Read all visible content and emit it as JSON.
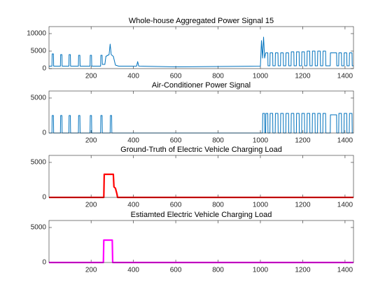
{
  "chart_data": [
    {
      "type": "line",
      "title": "Whole-house Aggregated Power Signal 15",
      "color": "#0072bd",
      "xlim": [
        1,
        1440
      ],
      "ylim": [
        0,
        12000
      ],
      "xticks": [
        200,
        400,
        600,
        800,
        1000,
        1200,
        1400
      ],
      "yticks": [
        0,
        5000,
        10000
      ],
      "x": [
        1,
        15,
        16,
        22,
        23,
        55,
        56,
        62,
        63,
        95,
        96,
        102,
        103,
        140,
        141,
        147,
        148,
        195,
        196,
        202,
        203,
        245,
        246,
        252,
        253,
        265,
        270,
        285,
        290,
        295,
        305,
        315,
        330,
        415,
        420,
        425,
        600,
        800,
        1000,
        1005,
        1010,
        1015,
        1020,
        1025,
        1035,
        1036,
        1045,
        1046,
        1058,
        1059,
        1070,
        1071,
        1083,
        1084,
        1095,
        1096,
        1108,
        1109,
        1120,
        1121,
        1133,
        1134,
        1145,
        1146,
        1158,
        1159,
        1170,
        1171,
        1183,
        1184,
        1195,
        1196,
        1208,
        1209,
        1220,
        1221,
        1233,
        1234,
        1245,
        1246,
        1258,
        1259,
        1270,
        1271,
        1283,
        1284,
        1295,
        1296,
        1308,
        1309,
        1330,
        1331,
        1360,
        1361,
        1370,
        1371,
        1383,
        1384,
        1395,
        1396,
        1408,
        1409,
        1420,
        1421,
        1433,
        1434,
        1440
      ],
      "values": [
        700,
        700,
        4200,
        4200,
        700,
        700,
        4000,
        4000,
        700,
        700,
        4000,
        4000,
        700,
        700,
        3800,
        3800,
        700,
        700,
        3800,
        3800,
        700,
        700,
        3800,
        3800,
        1200,
        1200,
        3500,
        4000,
        7000,
        4000,
        3500,
        1000,
        700,
        700,
        2000,
        700,
        500,
        600,
        700,
        8000,
        3000,
        9000,
        3000,
        4500,
        4500,
        800,
        800,
        4500,
        4500,
        800,
        800,
        4500,
        4500,
        800,
        800,
        4500,
        4500,
        800,
        800,
        4500,
        4500,
        800,
        800,
        4800,
        4800,
        800,
        800,
        4800,
        4800,
        800,
        800,
        4800,
        4800,
        800,
        800,
        5000,
        5000,
        800,
        800,
        5000,
        5000,
        800,
        800,
        5000,
        5000,
        800,
        800,
        5000,
        5000,
        800,
        800,
        4500,
        4500,
        800,
        800,
        4500,
        4500,
        800,
        800,
        4500,
        4500,
        800,
        800,
        4500,
        4500,
        800,
        800
      ]
    },
    {
      "type": "line",
      "title": "Air-Conditioner Power Signal",
      "color": "#0072bd",
      "xlim": [
        1,
        1440
      ],
      "ylim": [
        0,
        6000
      ],
      "xticks": [
        200,
        400,
        600,
        800,
        1000,
        1200,
        1400
      ],
      "yticks": [
        0,
        5000
      ],
      "x": [
        1,
        15,
        16,
        22,
        23,
        55,
        56,
        62,
        63,
        95,
        96,
        102,
        103,
        140,
        141,
        147,
        148,
        195,
        196,
        202,
        203,
        245,
        246,
        252,
        253,
        290,
        291,
        297,
        298,
        1010,
        1011,
        1020,
        1021,
        1025,
        1026,
        1035,
        1036,
        1045,
        1046,
        1058,
        1059,
        1070,
        1071,
        1083,
        1084,
        1095,
        1096,
        1108,
        1109,
        1120,
        1121,
        1133,
        1134,
        1145,
        1146,
        1158,
        1159,
        1170,
        1171,
        1183,
        1184,
        1195,
        1196,
        1208,
        1209,
        1220,
        1221,
        1233,
        1234,
        1245,
        1246,
        1258,
        1259,
        1270,
        1271,
        1283,
        1284,
        1295,
        1296,
        1308,
        1309,
        1330,
        1331,
        1360,
        1361,
        1370,
        1371,
        1383,
        1384,
        1395,
        1396,
        1408,
        1409,
        1420,
        1421,
        1433,
        1434,
        1440
      ],
      "values": [
        0,
        0,
        2500,
        2500,
        0,
        0,
        2500,
        2500,
        0,
        0,
        2500,
        2500,
        0,
        0,
        2500,
        2500,
        0,
        0,
        2500,
        2500,
        0,
        0,
        2500,
        2500,
        0,
        0,
        2500,
        2500,
        0,
        0,
        2800,
        2800,
        0,
        0,
        2800,
        2800,
        0,
        0,
        2800,
        2800,
        0,
        0,
        2800,
        2800,
        0,
        0,
        2800,
        2800,
        0,
        0,
        2800,
        2800,
        0,
        0,
        2800,
        2800,
        0,
        0,
        2800,
        2800,
        0,
        0,
        2800,
        2800,
        0,
        0,
        2800,
        2800,
        0,
        0,
        2800,
        2800,
        0,
        0,
        2800,
        2800,
        0,
        0,
        2800,
        2800,
        0,
        0,
        2600,
        2600,
        0,
        0,
        2800,
        2800,
        0,
        0,
        2800,
        2800,
        0,
        0,
        2800,
        2800,
        0,
        0
      ]
    },
    {
      "type": "line",
      "title": "Ground-Truth of Electric Vehicle Charging Load",
      "color": "#ff0000",
      "xlim": [
        1,
        1440
      ],
      "ylim": [
        0,
        6000
      ],
      "xticks": [
        200,
        400,
        600,
        800,
        1000,
        1200,
        1400
      ],
      "yticks": [
        0,
        5000
      ],
      "x": [
        1,
        260,
        262,
        305,
        308,
        315,
        322,
        325,
        1440
      ],
      "values": [
        0,
        0,
        3300,
        3300,
        1500,
        1300,
        500,
        0,
        0
      ]
    },
    {
      "type": "line",
      "title": "Estiamted Electric Vehicle Charging Load",
      "color": "#ff00ff",
      "xlim": [
        1,
        1440
      ],
      "ylim": [
        0,
        6000
      ],
      "xticks": [
        200,
        400,
        600,
        800,
        1000,
        1200,
        1400
      ],
      "yticks": [
        0,
        5000
      ],
      "x": [
        1,
        258,
        260,
        300,
        302,
        1440
      ],
      "values": [
        0,
        0,
        3200,
        3200,
        0,
        0
      ]
    }
  ]
}
